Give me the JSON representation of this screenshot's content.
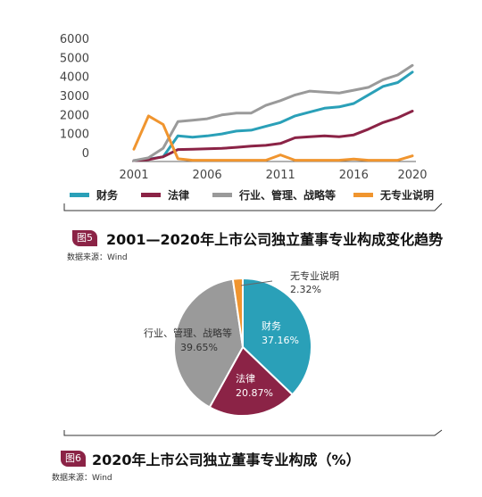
{
  "colors": {
    "finance": "#2aa0b8",
    "legal": "#8b2346",
    "industry": "#9a9a9a",
    "none": "#f0952f",
    "badge": "#8b2346"
  },
  "chart_data": [
    {
      "type": "line",
      "y_ticks": [
        "6000",
        "5000",
        "4000",
        "3000",
        "2000",
        "1000",
        "0"
      ],
      "x_ticks": [
        "2001",
        "2006",
        "2011",
        "2016",
        "2020"
      ],
      "ylim": [
        0,
        6000
      ],
      "x": [
        2001,
        2002,
        2003,
        2004,
        2005,
        2006,
        2007,
        2008,
        2009,
        2010,
        2011,
        2012,
        2013,
        2014,
        2015,
        2016,
        2017,
        2018,
        2019,
        2020
      ],
      "series": [
        {
          "name": "财务",
          "color": "#2aa0b8",
          "values": [
            0,
            80,
            200,
            1300,
            1230,
            1300,
            1400,
            1550,
            1600,
            1800,
            2000,
            2350,
            2550,
            2750,
            2820,
            3000,
            3450,
            3900,
            4100,
            4650
          ]
        },
        {
          "name": "法律",
          "color": "#8b2346",
          "values": [
            0,
            50,
            200,
            580,
            600,
            620,
            640,
            700,
            760,
            800,
            900,
            1200,
            1250,
            1300,
            1250,
            1350,
            1650,
            2000,
            2250,
            2600
          ]
        },
        {
          "name": "行业、管理、战略等",
          "color": "#9a9a9a",
          "values": [
            0,
            150,
            650,
            2050,
            2120,
            2200,
            2400,
            2500,
            2500,
            2900,
            3150,
            3450,
            3650,
            3600,
            3550,
            3700,
            3850,
            4250,
            4500,
            5000
          ]
        },
        {
          "name": "无专业说明",
          "color": "#f0952f",
          "values": [
            600,
            2350,
            1900,
            100,
            20,
            20,
            20,
            20,
            20,
            20,
            300,
            20,
            20,
            20,
            20,
            80,
            20,
            20,
            20,
            250
          ]
        }
      ],
      "legend": [
        "财务",
        "法律",
        "行业、管理、战略等",
        "无专业说明"
      ],
      "figure_number": "图5",
      "title": "2001—2020年上市公司独立董事专业构成变化趋势",
      "source": "数据来源：Wind"
    },
    {
      "type": "pie",
      "slices": [
        {
          "label": "财务",
          "value": 37.16,
          "value_label": "37.16%",
          "color": "#2aa0b8"
        },
        {
          "label": "法律",
          "value": 20.87,
          "value_label": "20.87%",
          "color": "#8b2346"
        },
        {
          "label": "行业、管理、战略等",
          "value": 39.65,
          "value_label": "39.65%",
          "color": "#9a9a9a"
        },
        {
          "label": "无专业说明",
          "value": 2.32,
          "value_label": "2.32%",
          "color": "#f0952f"
        }
      ],
      "figure_number": "图6",
      "title": "2020年上市公司独立董事专业构成（%）",
      "source": "数据来源：Wind"
    }
  ]
}
